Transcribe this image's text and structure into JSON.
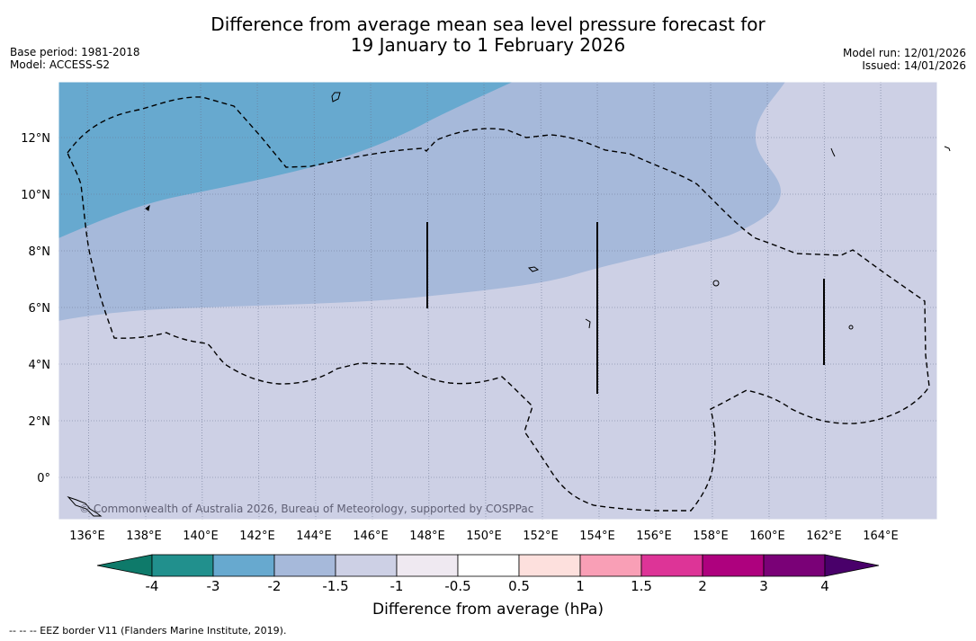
{
  "title": {
    "line1": "Difference from average mean sea level pressure forecast for",
    "line2": "19 January to 1 February 2026"
  },
  "meta": {
    "base_period": "Base period: 1981-2018",
    "model": "Model: ACCESS-S2",
    "model_run": "Model run: 12/01/2026",
    "issued": "Issued: 14/01/2026"
  },
  "map": {
    "lon_labels": [
      "136°E",
      "138°E",
      "140°E",
      "142°E",
      "144°E",
      "146°E",
      "148°E",
      "150°E",
      "152°E",
      "154°E",
      "156°E",
      "158°E",
      "160°E",
      "162°E",
      "164°E"
    ],
    "lat_labels": [
      "12°N",
      "10°N",
      "8°N",
      "6°N",
      "4°N",
      "2°N",
      "0°"
    ],
    "copyright": "© Commonwealth of Australia 2026, Bureau of Meteorology, supported by COSPPac"
  },
  "colorbar": {
    "colors": [
      "#0e7a6a",
      "#21908d",
      "#67a9cf",
      "#a6b9da",
      "#cdd0e5",
      "#efe9f1",
      "#ffffff",
      "#fde0dd",
      "#f99fb6",
      "#dd3497",
      "#ae017e",
      "#7a0177",
      "#49006a"
    ],
    "labels": [
      "-4",
      "-3",
      "-2",
      "-1.5",
      "-1",
      "-0.5",
      "0.5",
      "1",
      "1.5",
      "2",
      "3",
      "4"
    ],
    "title": "Difference from average (hPa)"
  },
  "footnote": "--  --  -- EEZ border V11 (Flanders Marine Institute, 2019)."
}
